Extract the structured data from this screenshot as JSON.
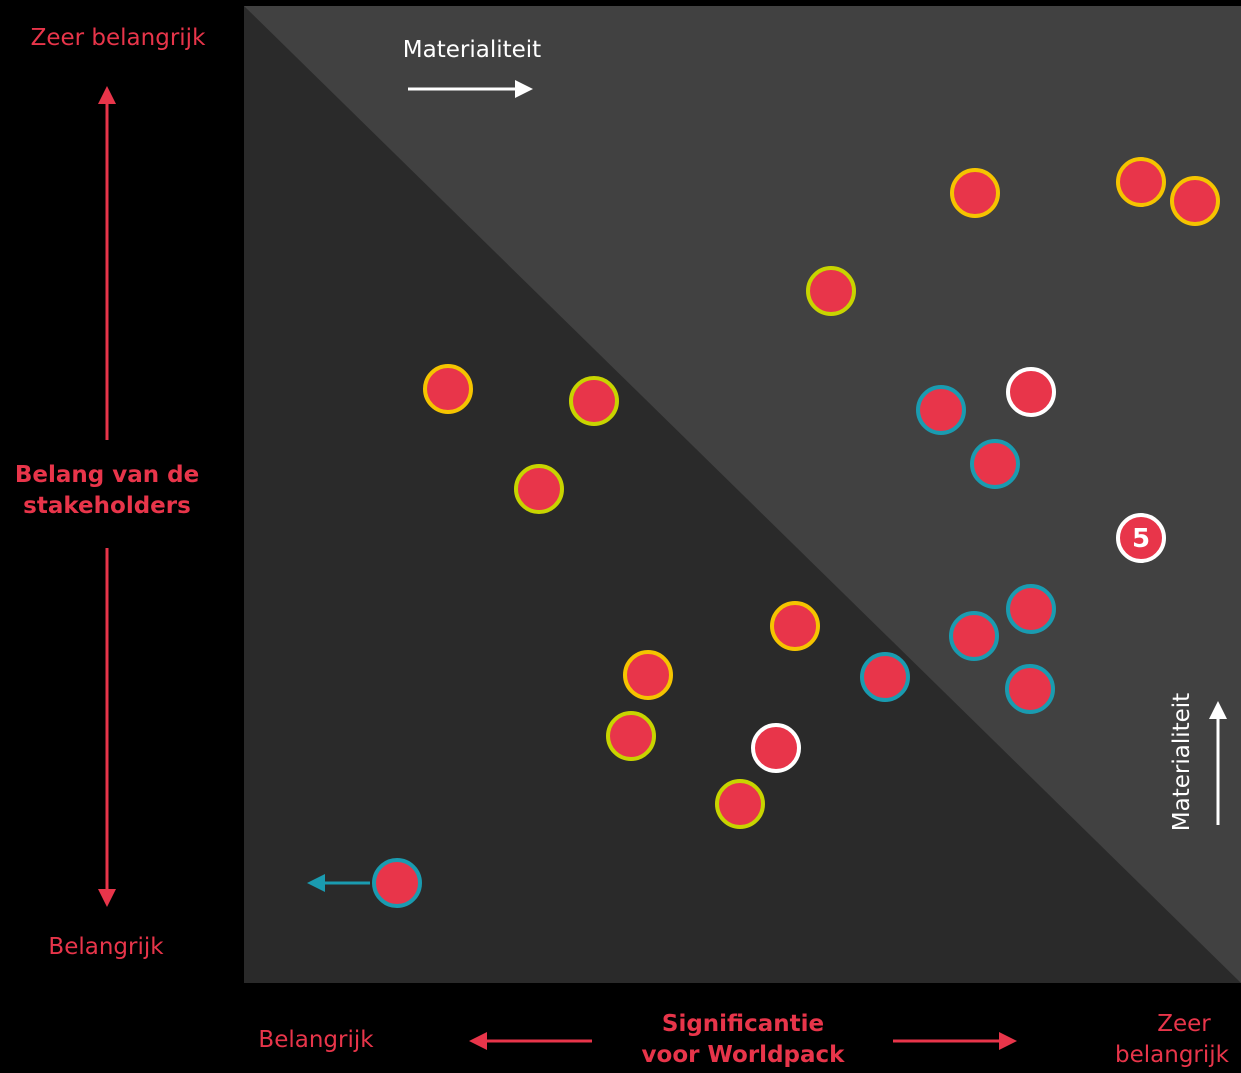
{
  "y_axis": {
    "top": "Zeer belangrijk",
    "title": [
      "Belang van de",
      "stakeholders"
    ],
    "bottom": "Belangrijk"
  },
  "x_axis": {
    "left": "Belangrijk",
    "title": [
      "Significantie",
      "voor Worldpack"
    ],
    "right": [
      "Zeer",
      "belangrijk"
    ]
  },
  "materiality_top": "Materialiteit",
  "materiality_right": "Materialiteit",
  "badge_label": "5"
}
